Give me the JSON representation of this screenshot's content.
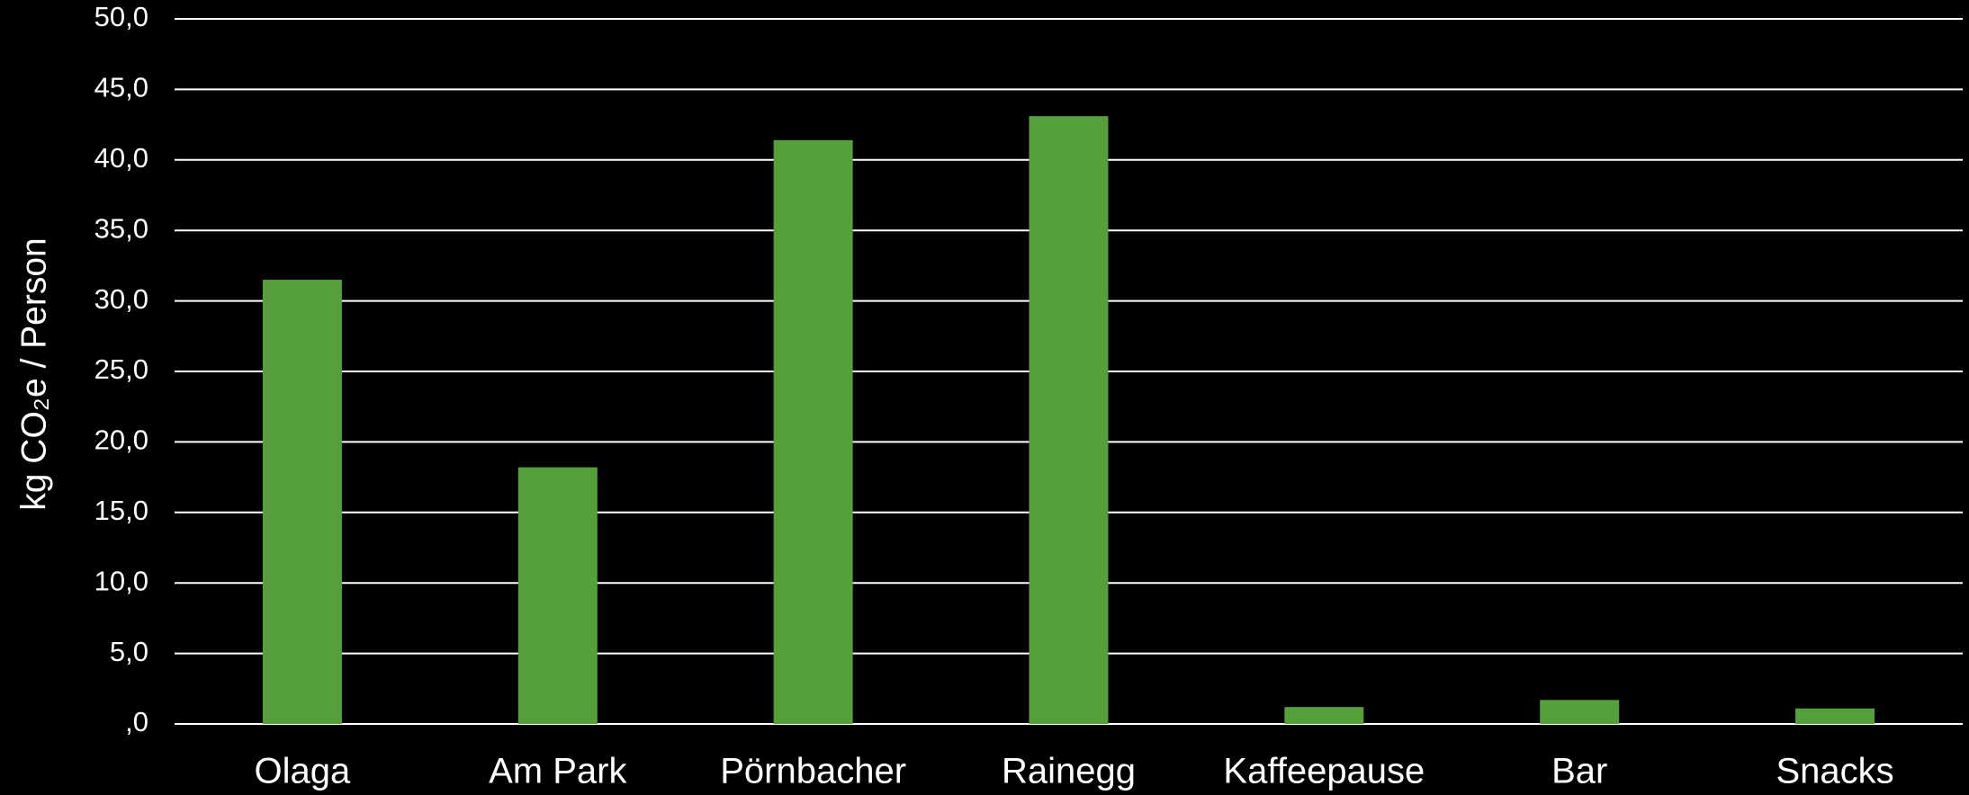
{
  "chart_data": {
    "type": "bar",
    "y_label": "kg CO₂e / Person",
    "categories": [
      "Olaga",
      "Am Park",
      "Pörnbacher",
      "Rainegg",
      "Kaffeepause",
      "Bar",
      "Snacks"
    ],
    "values": [
      31.5,
      18.2,
      41.4,
      43.1,
      1.2,
      1.7,
      1.1
    ],
    "color": "#56a03c",
    "ylim": [
      0,
      50
    ],
    "yticks": [
      {
        "value": 0,
        "label": ",0"
      },
      {
        "value": 5,
        "label": "5,0"
      },
      {
        "value": 10,
        "label": "10,0"
      },
      {
        "value": 15,
        "label": "15,0"
      },
      {
        "value": 20,
        "label": "20,0"
      },
      {
        "value": 25,
        "label": "25,0"
      },
      {
        "value": 30,
        "label": "30,0"
      },
      {
        "value": 35,
        "label": "35,0"
      },
      {
        "value": 40,
        "label": "40,0"
      },
      {
        "value": 45,
        "label": "45,0"
      },
      {
        "value": 50,
        "label": "50,0"
      }
    ],
    "grid": true
  }
}
